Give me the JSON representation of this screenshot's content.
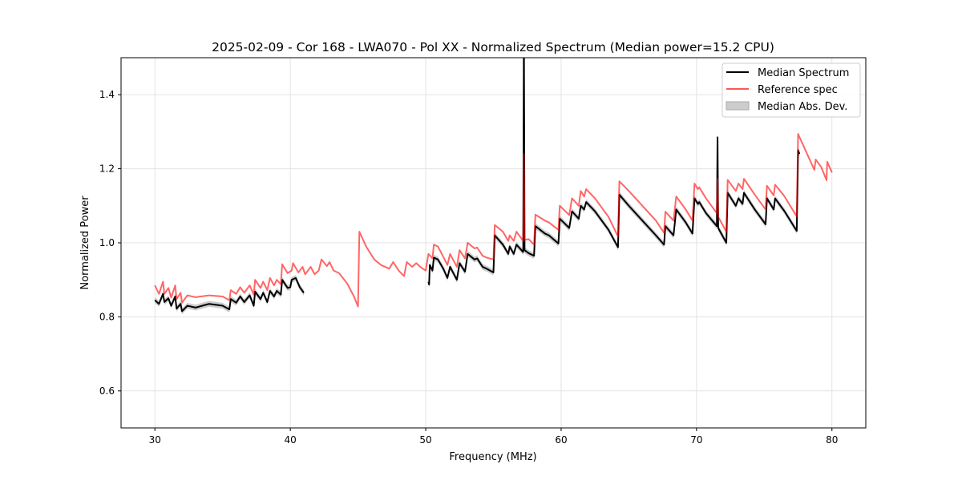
{
  "chart_data": {
    "type": "line",
    "title": "2025-02-09 - Cor 168 - LWA070 - Pol XX - Normalized Spectrum (Median power=15.2 CPU)",
    "xlabel": "Frequency (MHz)",
    "ylabel": "Normalized Power",
    "xlim": [
      27.5,
      82.5
    ],
    "ylim": [
      0.5,
      1.5
    ],
    "xticks": [
      30,
      40,
      50,
      60,
      70,
      80
    ],
    "yticks": [
      0.6,
      0.8,
      1.0,
      1.2,
      1.4
    ],
    "xtick_labels": [
      "30",
      "40",
      "50",
      "60",
      "70",
      "80"
    ],
    "ytick_labels": [
      "0.6",
      "0.8",
      "1.0",
      "1.2",
      "1.4"
    ],
    "grid": true,
    "legend_position": "top-right",
    "legend": [
      "Median Spectrum",
      "Reference spec",
      "Median Abs. Dev."
    ],
    "colors": {
      "median": "#000000",
      "reference": "#ff5555",
      "mad": "#bbbbbb"
    },
    "mad_halfwidth": 0.008,
    "series": [
      {
        "name": "Median Spectrum",
        "segments": [
          [
            [
              30.0,
              0.845
            ],
            [
              30.3,
              0.835
            ],
            [
              30.6,
              0.862
            ],
            [
              30.7,
              0.84
            ],
            [
              31.0,
              0.85
            ],
            [
              31.2,
              0.83
            ],
            [
              31.5,
              0.855
            ],
            [
              31.6,
              0.822
            ],
            [
              31.9,
              0.835
            ],
            [
              32.0,
              0.815
            ],
            [
              32.4,
              0.83
            ],
            [
              33.0,
              0.825
            ],
            [
              34.0,
              0.835
            ],
            [
              35.0,
              0.83
            ],
            [
              35.5,
              0.82
            ],
            [
              35.6,
              0.848
            ],
            [
              36.0,
              0.838
            ],
            [
              36.3,
              0.855
            ],
            [
              36.6,
              0.84
            ],
            [
              37.0,
              0.858
            ],
            [
              37.3,
              0.83
            ],
            [
              37.4,
              0.868
            ],
            [
              37.8,
              0.848
            ],
            [
              38.0,
              0.865
            ],
            [
              38.3,
              0.84
            ],
            [
              38.5,
              0.87
            ],
            [
              38.8,
              0.855
            ],
            [
              39.0,
              0.87
            ],
            [
              39.3,
              0.86
            ],
            [
              39.4,
              0.9
            ],
            [
              39.8,
              0.878
            ],
            [
              40.0,
              0.88
            ],
            [
              40.1,
              0.9
            ],
            [
              40.4,
              0.905
            ],
            [
              40.7,
              0.88
            ],
            [
              41.0,
              0.865
            ]
          ],
          [
            [
              50.2,
              0.895
            ],
            [
              50.25,
              0.887
            ],
            [
              50.3,
              0.94
            ],
            [
              50.5,
              0.925
            ],
            [
              50.6,
              0.96
            ],
            [
              50.9,
              0.955
            ],
            [
              51.3,
              0.93
            ],
            [
              51.6,
              0.905
            ],
            [
              51.8,
              0.935
            ],
            [
              52.3,
              0.9
            ],
            [
              52.5,
              0.945
            ],
            [
              52.9,
              0.922
            ],
            [
              53.1,
              0.97
            ],
            [
              53.6,
              0.955
            ],
            [
              53.8,
              0.958
            ],
            [
              54.2,
              0.935
            ],
            [
              54.5,
              0.93
            ],
            [
              55.0,
              0.92
            ],
            [
              55.1,
              1.02
            ],
            [
              55.7,
              0.995
            ],
            [
              56.1,
              0.97
            ],
            [
              56.2,
              0.99
            ],
            [
              56.5,
              0.97
            ],
            [
              56.7,
              0.995
            ],
            [
              57.2,
              0.975
            ],
            [
              57.25,
              1.6
            ],
            [
              57.3,
              0.98
            ],
            [
              57.6,
              0.972
            ],
            [
              58.0,
              0.965
            ],
            [
              58.1,
              1.045
            ],
            [
              58.8,
              1.025
            ],
            [
              59.1,
              1.02
            ],
            [
              59.8,
              0.998
            ],
            [
              59.9,
              1.065
            ],
            [
              60.6,
              1.04
            ],
            [
              60.8,
              1.085
            ],
            [
              61.3,
              1.065
            ],
            [
              61.45,
              1.1
            ],
            [
              61.7,
              1.09
            ],
            [
              61.85,
              1.11
            ],
            [
              62.5,
              1.085
            ],
            [
              63.5,
              1.035
            ],
            [
              64.2,
              0.988
            ],
            [
              64.3,
              1.13
            ],
            [
              65.0,
              1.1
            ],
            [
              66.0,
              1.06
            ],
            [
              67.0,
              1.02
            ],
            [
              67.6,
              0.995
            ],
            [
              67.7,
              1.045
            ],
            [
              68.3,
              1.02
            ],
            [
              68.5,
              1.09
            ],
            [
              69.2,
              1.055
            ],
            [
              69.7,
              1.025
            ],
            [
              69.85,
              1.12
            ],
            [
              70.1,
              1.105
            ],
            [
              70.2,
              1.11
            ],
            [
              70.7,
              1.08
            ],
            [
              71.5,
              1.045
            ],
            [
              71.55,
              1.285
            ],
            [
              71.6,
              1.04
            ],
            [
              72.2,
              1.0
            ],
            [
              72.3,
              1.135
            ],
            [
              72.9,
              1.1
            ],
            [
              73.1,
              1.12
            ],
            [
              73.4,
              1.105
            ],
            [
              73.5,
              1.135
            ],
            [
              74.3,
              1.09
            ],
            [
              75.1,
              1.05
            ],
            [
              75.2,
              1.12
            ],
            [
              75.7,
              1.09
            ],
            [
              75.8,
              1.12
            ],
            [
              76.4,
              1.09
            ],
            [
              76.5,
              1.085
            ],
            [
              77.4,
              1.032
            ],
            [
              77.5,
              1.25
            ],
            [
              77.6,
              1.24
            ]
          ]
        ]
      },
      {
        "name": "Reference spec",
        "segments": [
          [
            [
              30.0,
              0.885
            ],
            [
              30.3,
              0.862
            ],
            [
              30.6,
              0.895
            ],
            [
              30.7,
              0.862
            ],
            [
              31.0,
              0.878
            ],
            [
              31.2,
              0.852
            ],
            [
              31.5,
              0.885
            ],
            [
              31.6,
              0.848
            ],
            [
              31.9,
              0.865
            ],
            [
              32.0,
              0.838
            ],
            [
              32.4,
              0.858
            ],
            [
              33.0,
              0.853
            ],
            [
              34.0,
              0.858
            ],
            [
              35.0,
              0.855
            ],
            [
              35.5,
              0.845
            ],
            [
              35.6,
              0.872
            ],
            [
              36.0,
              0.862
            ],
            [
              36.3,
              0.88
            ],
            [
              36.6,
              0.865
            ],
            [
              37.0,
              0.885
            ],
            [
              37.3,
              0.86
            ],
            [
              37.4,
              0.9
            ],
            [
              37.8,
              0.878
            ],
            [
              38.0,
              0.895
            ],
            [
              38.3,
              0.872
            ],
            [
              38.5,
              0.905
            ],
            [
              38.8,
              0.885
            ],
            [
              39.0,
              0.9
            ],
            [
              39.3,
              0.888
            ],
            [
              39.4,
              0.942
            ],
            [
              39.8,
              0.918
            ],
            [
              40.1,
              0.925
            ],
            [
              40.2,
              0.945
            ],
            [
              40.6,
              0.92
            ],
            [
              40.9,
              0.935
            ],
            [
              41.1,
              0.915
            ],
            [
              41.5,
              0.935
            ],
            [
              41.8,
              0.915
            ],
            [
              42.1,
              0.925
            ],
            [
              42.3,
              0.955
            ],
            [
              42.7,
              0.937
            ],
            [
              42.9,
              0.948
            ],
            [
              43.2,
              0.925
            ],
            [
              43.6,
              0.918
            ],
            [
              44.2,
              0.89
            ],
            [
              44.7,
              0.855
            ],
            [
              45.0,
              0.828
            ],
            [
              45.1,
              1.03
            ],
            [
              45.6,
              0.99
            ],
            [
              46.2,
              0.955
            ],
            [
              46.7,
              0.94
            ],
            [
              47.3,
              0.93
            ],
            [
              47.6,
              0.948
            ],
            [
              48.0,
              0.925
            ],
            [
              48.4,
              0.91
            ],
            [
              48.6,
              0.948
            ],
            [
              49.0,
              0.935
            ],
            [
              49.3,
              0.945
            ],
            [
              49.6,
              0.935
            ],
            [
              50.0,
              0.925
            ],
            [
              50.2,
              0.97
            ],
            [
              50.5,
              0.958
            ],
            [
              50.6,
              0.995
            ],
            [
              50.9,
              0.99
            ],
            [
              51.3,
              0.962
            ],
            [
              51.6,
              0.94
            ],
            [
              51.8,
              0.97
            ],
            [
              52.3,
              0.935
            ],
            [
              52.5,
              0.98
            ],
            [
              52.9,
              0.958
            ],
            [
              53.1,
              1.0
            ],
            [
              53.6,
              0.985
            ],
            [
              53.8,
              0.987
            ],
            [
              54.2,
              0.965
            ],
            [
              54.5,
              0.96
            ],
            [
              55.0,
              0.955
            ],
            [
              55.1,
              1.048
            ],
            [
              55.7,
              1.03
            ],
            [
              56.1,
              1.005
            ],
            [
              56.2,
              1.02
            ],
            [
              56.5,
              1.005
            ],
            [
              56.7,
              1.03
            ],
            [
              57.2,
              1.005
            ],
            [
              57.25,
              1.24
            ],
            [
              57.3,
              1.008
            ],
            [
              57.6,
              1.01
            ],
            [
              58.0,
              0.995
            ],
            [
              58.1,
              1.076
            ],
            [
              58.8,
              1.06
            ],
            [
              59.1,
              1.055
            ],
            [
              59.8,
              1.035
            ],
            [
              59.9,
              1.1
            ],
            [
              60.6,
              1.075
            ],
            [
              60.8,
              1.12
            ],
            [
              61.3,
              1.1
            ],
            [
              61.45,
              1.14
            ],
            [
              61.7,
              1.125
            ],
            [
              61.85,
              1.145
            ],
            [
              62.5,
              1.12
            ],
            [
              63.5,
              1.07
            ],
            [
              64.2,
              1.017
            ],
            [
              64.3,
              1.166
            ],
            [
              65.0,
              1.14
            ],
            [
              66.0,
              1.1
            ],
            [
              67.0,
              1.06
            ],
            [
              67.6,
              1.027
            ],
            [
              67.7,
              1.084
            ],
            [
              68.3,
              1.06
            ],
            [
              68.5,
              1.125
            ],
            [
              69.2,
              1.09
            ],
            [
              69.7,
              1.06
            ],
            [
              69.85,
              1.16
            ],
            [
              70.1,
              1.145
            ],
            [
              70.2,
              1.15
            ],
            [
              70.7,
              1.12
            ],
            [
              71.5,
              1.08
            ],
            [
              71.55,
              1.173
            ],
            [
              71.6,
              1.07
            ],
            [
              72.2,
              1.03
            ],
            [
              72.3,
              1.17
            ],
            [
              72.9,
              1.14
            ],
            [
              73.1,
              1.16
            ],
            [
              73.4,
              1.145
            ],
            [
              73.5,
              1.173
            ],
            [
              74.3,
              1.13
            ],
            [
              75.1,
              1.09
            ],
            [
              75.2,
              1.154
            ],
            [
              75.7,
              1.128
            ],
            [
              75.8,
              1.157
            ],
            [
              76.4,
              1.13
            ],
            [
              76.5,
              1.125
            ],
            [
              77.4,
              1.071
            ],
            [
              77.5,
              1.294
            ],
            [
              78.7,
              1.197
            ],
            [
              78.8,
              1.225
            ],
            [
              79.2,
              1.205
            ],
            [
              79.6,
              1.169
            ],
            [
              79.65,
              1.219
            ],
            [
              80.0,
              1.19
            ]
          ]
        ]
      }
    ]
  }
}
